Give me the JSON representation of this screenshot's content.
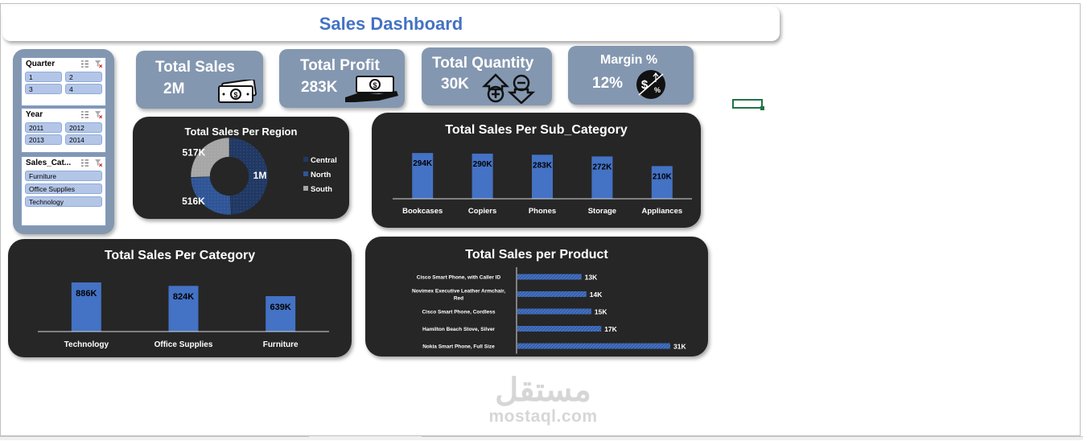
{
  "dashboard": {
    "title": "Sales Dashboard"
  },
  "slicers": {
    "quarter": {
      "title": "Quarter",
      "items": [
        "1",
        "2",
        "3",
        "4"
      ]
    },
    "year": {
      "title": "Year",
      "items": [
        "2011",
        "2012",
        "2013",
        "2014"
      ]
    },
    "category": {
      "title": "Sales_Cat...",
      "items": [
        "Furniture",
        "Office Supplies",
        "Technology"
      ]
    }
  },
  "kpis": {
    "sales": {
      "label": "Total Sales",
      "value": "2M",
      "icon": "money-icon"
    },
    "profit": {
      "label": "Total Profit",
      "value": "283K",
      "icon": "cash-hand-icon"
    },
    "quantity": {
      "label": "Total Quantity",
      "value": "30K",
      "icon": "plus-minus-icon"
    },
    "margin": {
      "label": "Margin %",
      "value": "12%",
      "icon": "dollar-percent-icon"
    }
  },
  "colors": {
    "panel": "#262626",
    "kpi": "#8497b0",
    "bar": "#4472c4",
    "accent": "#4472c4"
  },
  "watermark": {
    "arabic": "مستقل",
    "latin": "mostaql.com"
  },
  "chart_data": [
    {
      "id": "region",
      "type": "pie",
      "title": "Total Sales Per Region",
      "categories": [
        "Central",
        "North",
        "South"
      ],
      "values": [
        1000000,
        516000,
        517000
      ],
      "data_labels": [
        "1M",
        "516K",
        "517K"
      ],
      "colors": [
        "#203864",
        "#2f5597",
        "#a6a6a6"
      ],
      "legend": "right"
    },
    {
      "id": "subcategory",
      "type": "bar",
      "title": "Total Sales Per Sub_Category",
      "categories": [
        "Bookcases",
        "Copiers",
        "Phones",
        "Storage",
        "Appliances"
      ],
      "values": [
        294,
        290,
        283,
        272,
        210
      ],
      "data_labels": [
        "294K",
        "290K",
        "283K",
        "272K",
        "210K"
      ],
      "ylim": [
        0,
        300
      ]
    },
    {
      "id": "category",
      "type": "bar",
      "title": "Total Sales Per Category",
      "categories": [
        "Technology",
        "Office Supplies",
        "Furniture"
      ],
      "values": [
        886,
        824,
        639
      ],
      "data_labels": [
        "886K",
        "824K",
        "639K"
      ],
      "ylim": [
        0,
        900
      ]
    },
    {
      "id": "product",
      "type": "bar",
      "orientation": "horizontal",
      "title": "Total Sales per Product",
      "categories": [
        "Cisco Smart Phone, with Caller ID",
        "Novimex Executive Leather Armchair, Red",
        "Cisco Smart Phone, Cordless",
        "Hamilton Beach Stove, Silver",
        "Nokia Smart Phone, Full Size"
      ],
      "values": [
        13,
        14,
        15,
        17,
        31
      ],
      "data_labels": [
        "13K",
        "14K",
        "15K",
        "17K",
        "31K"
      ],
      "xlim": [
        0,
        31
      ]
    }
  ]
}
